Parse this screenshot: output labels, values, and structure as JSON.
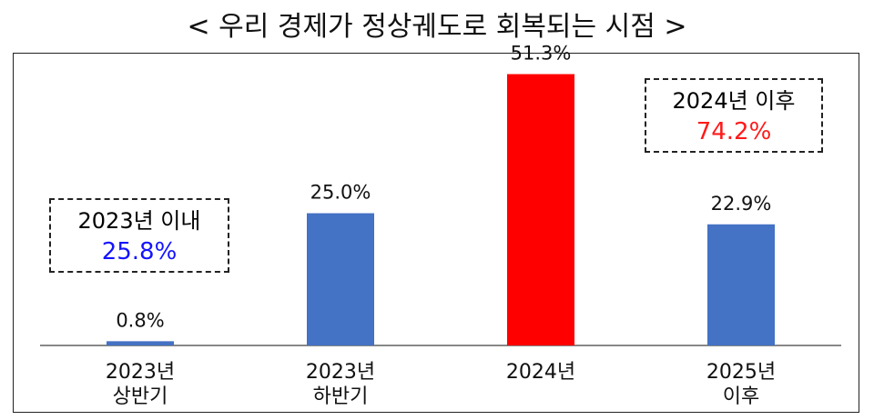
{
  "title": "< 우리 경제가 정상궤도로 회복되는 시점 >",
  "callouts": {
    "left": {
      "label": "2023년 이내",
      "value": "25.8%",
      "color": "#1414ff"
    },
    "right": {
      "label": "2024년 이후",
      "value": "74.2%",
      "color": "#ff1a1a"
    }
  },
  "chart_data": {
    "type": "bar",
    "categories": [
      [
        "2023년",
        "상반기"
      ],
      [
        "2023년",
        "하반기"
      ],
      [
        "2024년"
      ],
      [
        "2025년",
        "이후"
      ]
    ],
    "values": [
      0.8,
      25.0,
      51.3,
      22.9
    ],
    "value_labels": [
      "0.8%",
      "25.0%",
      "51.3%",
      "22.9%"
    ],
    "colors": [
      "#4472c4",
      "#4472c4",
      "#ff0000",
      "#4472c4"
    ],
    "ylim": [
      0,
      55
    ],
    "grid": false,
    "xlabel": "",
    "ylabel": ""
  }
}
